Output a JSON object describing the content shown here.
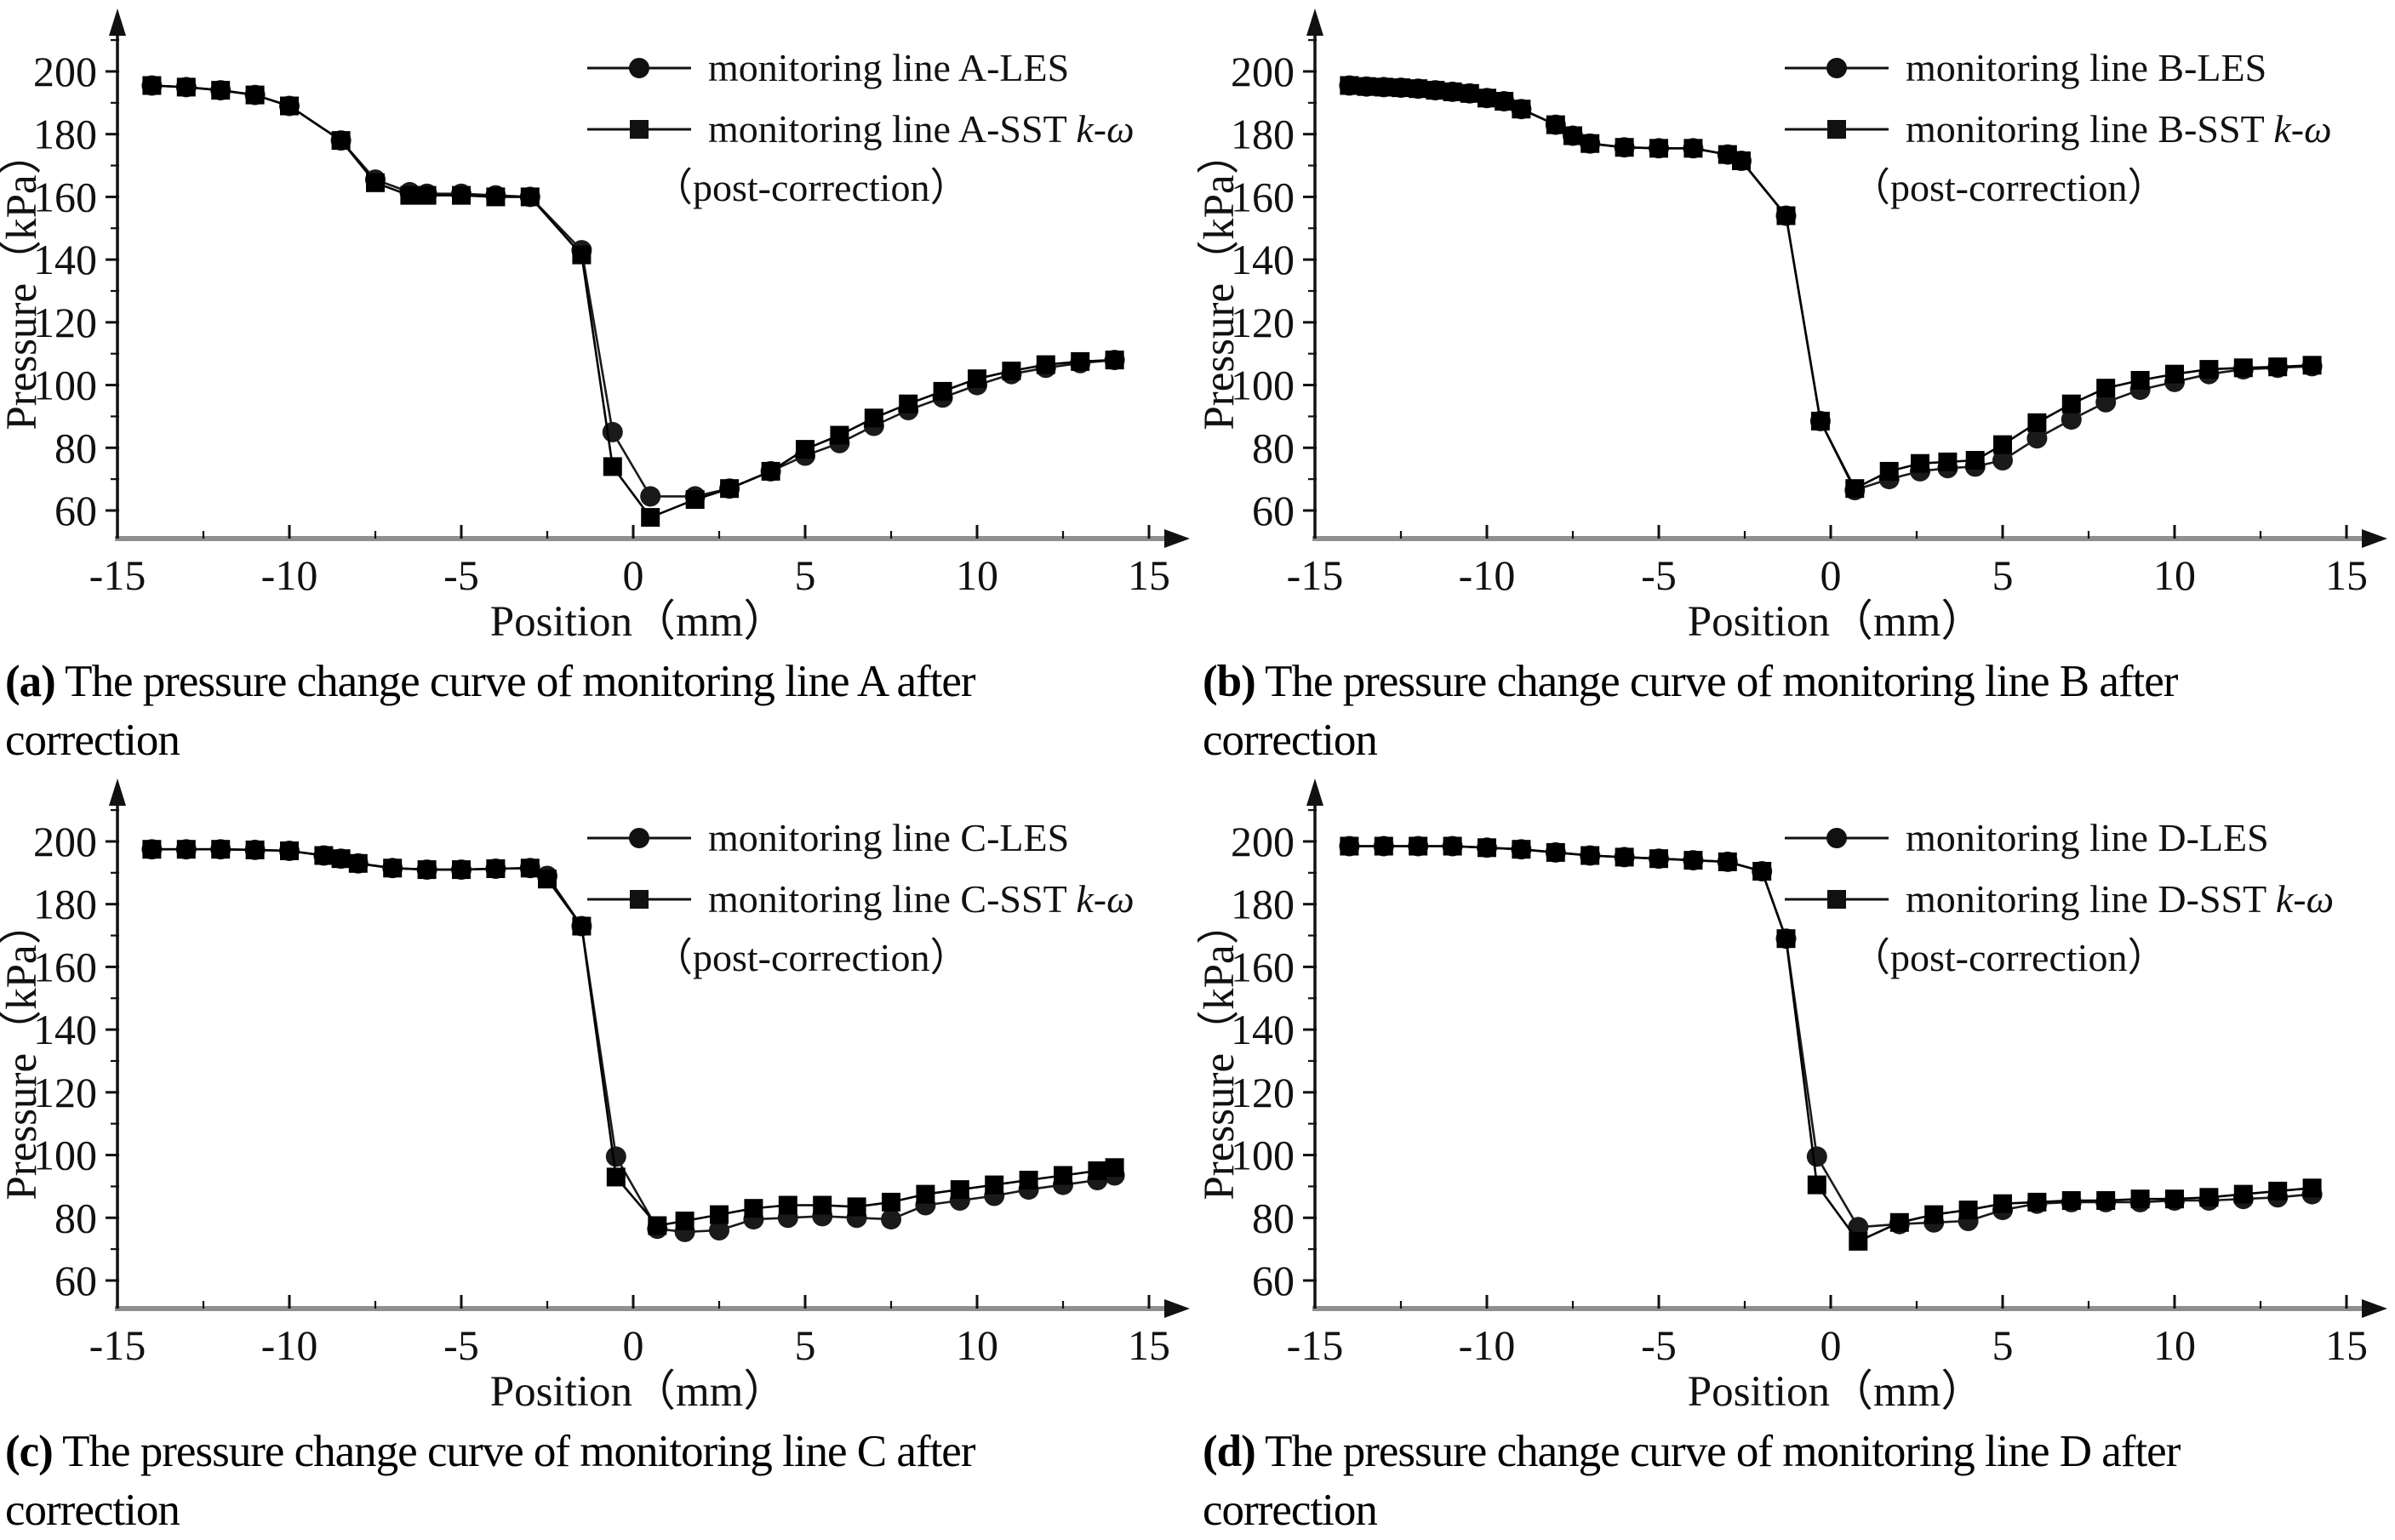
{
  "figure": {
    "panels": [
      {
        "tag": "(a)",
        "text": " The pressure change curve of monitoring line A after correction"
      },
      {
        "tag": "(b)",
        "text": " The pressure change curve of monitoring line B after correction"
      },
      {
        "tag": "(c)",
        "text": " The pressure change curve of monitoring line C after correction"
      },
      {
        "tag": "(d)",
        "text": " The pressure change curve of monitoring line D after correction"
      }
    ]
  },
  "chart_data": [
    {
      "type": "line",
      "title": "",
      "xlabel": "Position（mm）",
      "ylabel": "Pressure（kPa）",
      "xlim": [
        -15,
        16.2
      ],
      "ylim": [
        51,
        219
      ],
      "grid": false,
      "legend_position": "upper-right",
      "xticks": [
        -15,
        -10,
        -5,
        0,
        5,
        10,
        15
      ],
      "xminor": [
        -12.5,
        -7.5,
        -2.5,
        2.5,
        7.5,
        12.5
      ],
      "yticks": [
        60,
        80,
        100,
        120,
        140,
        160,
        180,
        200
      ],
      "yminor": [
        70,
        90,
        110,
        130,
        150,
        170,
        190,
        210
      ],
      "legend": [
        {
          "label": "monitoring line A-LES",
          "italic": "",
          "marker": "circle"
        },
        {
          "label": "monitoring line A-SST ",
          "italic": "k-ω",
          "marker": "square"
        }
      ],
      "legend_note": "（post-correction）",
      "series": [
        {
          "name": "monitoring line A-LES",
          "marker": "circle",
          "color": "#1a1a1a",
          "x": [
            -14,
            -13,
            -12,
            -11,
            -10,
            -8.5,
            -7.5,
            -6.5,
            -6,
            -5,
            -4,
            -3,
            -1.5,
            -0.6,
            0.5,
            1.8,
            2.8,
            4,
            5,
            6,
            7,
            8,
            9,
            10,
            11,
            12,
            13,
            14
          ],
          "y": [
            195.5,
            195,
            194,
            192.5,
            189,
            178,
            165.5,
            161.5,
            161,
            161,
            160.5,
            160,
            143,
            85,
            64.5,
            64.5,
            67,
            72.5,
            77.5,
            81.5,
            87,
            92,
            96,
            100,
            103.5,
            105.5,
            107,
            108
          ]
        },
        {
          "name": "monitoring line A-SST k-ω (post-correction)",
          "marker": "square",
          "color": "#000000",
          "x": [
            -14,
            -13,
            -12,
            -11,
            -10,
            -8.5,
            -7.5,
            -6.5,
            -6,
            -5,
            -4,
            -3,
            -1.5,
            -0.6,
            0.5,
            1.8,
            2.8,
            4,
            5,
            6,
            7,
            8,
            9,
            10,
            11,
            12,
            13,
            14
          ],
          "y": [
            195.5,
            195,
            194,
            192.5,
            189,
            178,
            164.5,
            160.5,
            160.5,
            160.5,
            160,
            160,
            141.5,
            74,
            57.8,
            63.5,
            67,
            72.5,
            79.5,
            84,
            89.5,
            94,
            98,
            102,
            104.5,
            106.5,
            107.5,
            108
          ]
        }
      ]
    },
    {
      "type": "line",
      "title": "",
      "xlabel": "Position（mm）",
      "ylabel": "Pressure（kPa）",
      "xlim": [
        -15,
        16.2
      ],
      "ylim": [
        51,
        219
      ],
      "grid": false,
      "legend_position": "upper-right",
      "xticks": [
        -15,
        -10,
        -5,
        0,
        5,
        10,
        15
      ],
      "xminor": [
        -12.5,
        -7.5,
        -2.5,
        2.5,
        7.5,
        12.5
      ],
      "yticks": [
        60,
        80,
        100,
        120,
        140,
        160,
        180,
        200
      ],
      "yminor": [
        70,
        90,
        110,
        130,
        150,
        170,
        190,
        210
      ],
      "legend": [
        {
          "label": "monitoring line B-LES",
          "italic": "",
          "marker": "circle"
        },
        {
          "label": "monitoring line B-SST ",
          "italic": "k-ω",
          "marker": "square"
        }
      ],
      "legend_note": "（post-correction）",
      "series": [
        {
          "name": "monitoring line B-LES",
          "marker": "circle",
          "color": "#1a1a1a",
          "x": [
            -14,
            -13.5,
            -13,
            -12.5,
            -12,
            -11.5,
            -11,
            -10.5,
            -10,
            -9.5,
            -9,
            -8,
            -7.5,
            -7,
            -6,
            -5,
            -4,
            -3,
            -2.6,
            -1.3,
            -0.3,
            0.7,
            1.7,
            2.6,
            3.4,
            4.2,
            5,
            6,
            7,
            8,
            9,
            10,
            11,
            12,
            13,
            14
          ],
          "y": [
            195.5,
            195.2,
            195,
            194.8,
            194.5,
            194,
            193.5,
            193,
            191.5,
            190.5,
            188,
            183,
            179.5,
            177,
            175.8,
            175.5,
            175.5,
            173.5,
            171.5,
            154,
            88.5,
            66.5,
            70,
            72.5,
            73.5,
            74,
            76,
            83,
            89,
            94.5,
            98.5,
            101,
            103.5,
            105,
            105.5,
            106
          ]
        },
        {
          "name": "monitoring line B-SST k-ω (post-correction)",
          "marker": "square",
          "color": "#000000",
          "x": [
            -14,
            -13.5,
            -13,
            -12.5,
            -12,
            -11.5,
            -11,
            -10.5,
            -10,
            -9.5,
            -9,
            -8,
            -7.5,
            -7,
            -6,
            -5,
            -4,
            -3,
            -2.6,
            -1.3,
            -0.3,
            0.7,
            1.7,
            2.6,
            3.4,
            4.2,
            5,
            6,
            7,
            8,
            9,
            10,
            11,
            12,
            13,
            14
          ],
          "y": [
            195.5,
            195.2,
            195,
            194.8,
            194.5,
            194,
            193.5,
            193,
            191.5,
            190.5,
            188,
            183,
            179.5,
            177,
            175.8,
            175.5,
            175.5,
            173.5,
            171.5,
            154,
            88.5,
            67,
            72.5,
            75,
            75.5,
            76,
            81,
            88,
            94,
            99,
            101.5,
            103.5,
            105,
            105.5,
            105.8,
            106.3
          ]
        }
      ]
    },
    {
      "type": "line",
      "title": "",
      "xlabel": "Position（mm）",
      "ylabel": "Pressure（kPa）",
      "xlim": [
        -15,
        16.2
      ],
      "ylim": [
        51,
        219
      ],
      "grid": false,
      "legend_position": "upper-right",
      "xticks": [
        -15,
        -10,
        -5,
        0,
        5,
        10,
        15
      ],
      "xminor": [
        -12.5,
        -7.5,
        -2.5,
        2.5,
        7.5,
        12.5
      ],
      "yticks": [
        60,
        80,
        100,
        120,
        140,
        160,
        180,
        200
      ],
      "yminor": [
        70,
        90,
        110,
        130,
        150,
        170,
        190,
        210
      ],
      "legend": [
        {
          "label": "monitoring line  C-LES",
          "italic": "",
          "marker": "circle"
        },
        {
          "label": "monitoring line C-SST ",
          "italic": "k-ω",
          "marker": "square"
        }
      ],
      "legend_note": "（post-correction）",
      "series": [
        {
          "name": "monitoring line C-LES",
          "marker": "circle",
          "color": "#1a1a1a",
          "x": [
            -14,
            -13,
            -12,
            -11,
            -10,
            -9,
            -8.5,
            -8,
            -7,
            -6,
            -5,
            -4,
            -3,
            -2.5,
            -1.5,
            -0.5,
            0.7,
            1.5,
            2.5,
            3.5,
            4.5,
            5.5,
            6.5,
            7.5,
            8.5,
            9.5,
            10.5,
            11.5,
            12.5,
            13.5,
            14
          ],
          "y": [
            197.5,
            197.5,
            197.5,
            197.3,
            197,
            195.5,
            194.5,
            193,
            191.5,
            191,
            191,
            191.3,
            191.5,
            189,
            173,
            99.5,
            76.5,
            75.5,
            76,
            79.5,
            80,
            80.5,
            80,
            79.5,
            84,
            85.5,
            87,
            89,
            90.5,
            92,
            93.5
          ]
        },
        {
          "name": "monitoring line C-SST k-ω (post-correction)",
          "marker": "square",
          "color": "#000000",
          "x": [
            -14,
            -13,
            -12,
            -11,
            -10,
            -9,
            -8.5,
            -8,
            -7,
            -6,
            -5,
            -4,
            -3,
            -2.5,
            -1.5,
            -0.5,
            0.7,
            1.5,
            2.5,
            3.5,
            4.5,
            5.5,
            6.5,
            7.5,
            8.5,
            9.5,
            10.5,
            11.5,
            12.5,
            13.5,
            14
          ],
          "y": [
            197.5,
            197.5,
            197.5,
            197.3,
            197,
            195.5,
            194.5,
            193,
            191.5,
            191,
            191,
            191.3,
            191.5,
            188,
            173,
            93,
            77.5,
            79,
            81,
            83,
            84,
            84,
            83.5,
            85,
            87.5,
            89,
            90.5,
            92,
            93.5,
            95,
            96
          ]
        }
      ]
    },
    {
      "type": "line",
      "title": "",
      "xlabel": "Position（mm）",
      "ylabel": "Pressure（kPa）",
      "xlim": [
        -15,
        16.2
      ],
      "ylim": [
        51,
        219
      ],
      "grid": false,
      "legend_position": "upper-right",
      "xticks": [
        -15,
        -10,
        -5,
        0,
        5,
        10,
        15
      ],
      "xminor": [
        -12.5,
        -7.5,
        -2.5,
        2.5,
        7.5,
        12.5
      ],
      "yticks": [
        60,
        80,
        100,
        120,
        140,
        160,
        180,
        200
      ],
      "yminor": [
        70,
        90,
        110,
        130,
        150,
        170,
        190,
        210
      ],
      "legend": [
        {
          "label": "monitoring line  D-LES",
          "italic": "",
          "marker": "circle"
        },
        {
          "label": "monitoring line D-SST ",
          "italic": "k-ω",
          "marker": "square"
        }
      ],
      "legend_note": "（post-correction）",
      "series": [
        {
          "name": "monitoring line D-LES",
          "marker": "circle",
          "color": "#1a1a1a",
          "x": [
            -14,
            -13,
            -12,
            -11,
            -10,
            -9,
            -8,
            -7,
            -6,
            -5,
            -4,
            -3,
            -2,
            -1.3,
            -0.4,
            0.8,
            2,
            3,
            4,
            5,
            6,
            7,
            8,
            9,
            10,
            11,
            12,
            13,
            14
          ],
          "y": [
            198.5,
            198.5,
            198.5,
            198.5,
            198,
            197.5,
            196.5,
            195.5,
            195,
            194.5,
            194,
            193.5,
            190.5,
            169,
            99.5,
            77,
            78,
            78.5,
            79,
            82.5,
            84.5,
            85,
            85,
            85,
            85.5,
            85.5,
            86,
            86.5,
            87.5
          ]
        },
        {
          "name": "monitoring line D-SST k-ω (post-correction)",
          "marker": "square",
          "color": "#000000",
          "x": [
            -14,
            -13,
            -12,
            -11,
            -10,
            -9,
            -8,
            -7,
            -6,
            -5,
            -4,
            -3,
            -2,
            -1.3,
            -0.4,
            0.8,
            2,
            3,
            4,
            5,
            6,
            7,
            8,
            9,
            10,
            11,
            12,
            13,
            14
          ],
          "y": [
            198.5,
            198.5,
            198.5,
            198.5,
            198,
            197.5,
            196.5,
            195.5,
            195,
            194.5,
            194,
            193.5,
            190.5,
            169,
            90.5,
            72.5,
            78.5,
            81,
            82.5,
            84.5,
            85,
            85.5,
            85.5,
            86,
            86,
            86.5,
            87.5,
            88.5,
            89.5
          ]
        }
      ]
    }
  ]
}
